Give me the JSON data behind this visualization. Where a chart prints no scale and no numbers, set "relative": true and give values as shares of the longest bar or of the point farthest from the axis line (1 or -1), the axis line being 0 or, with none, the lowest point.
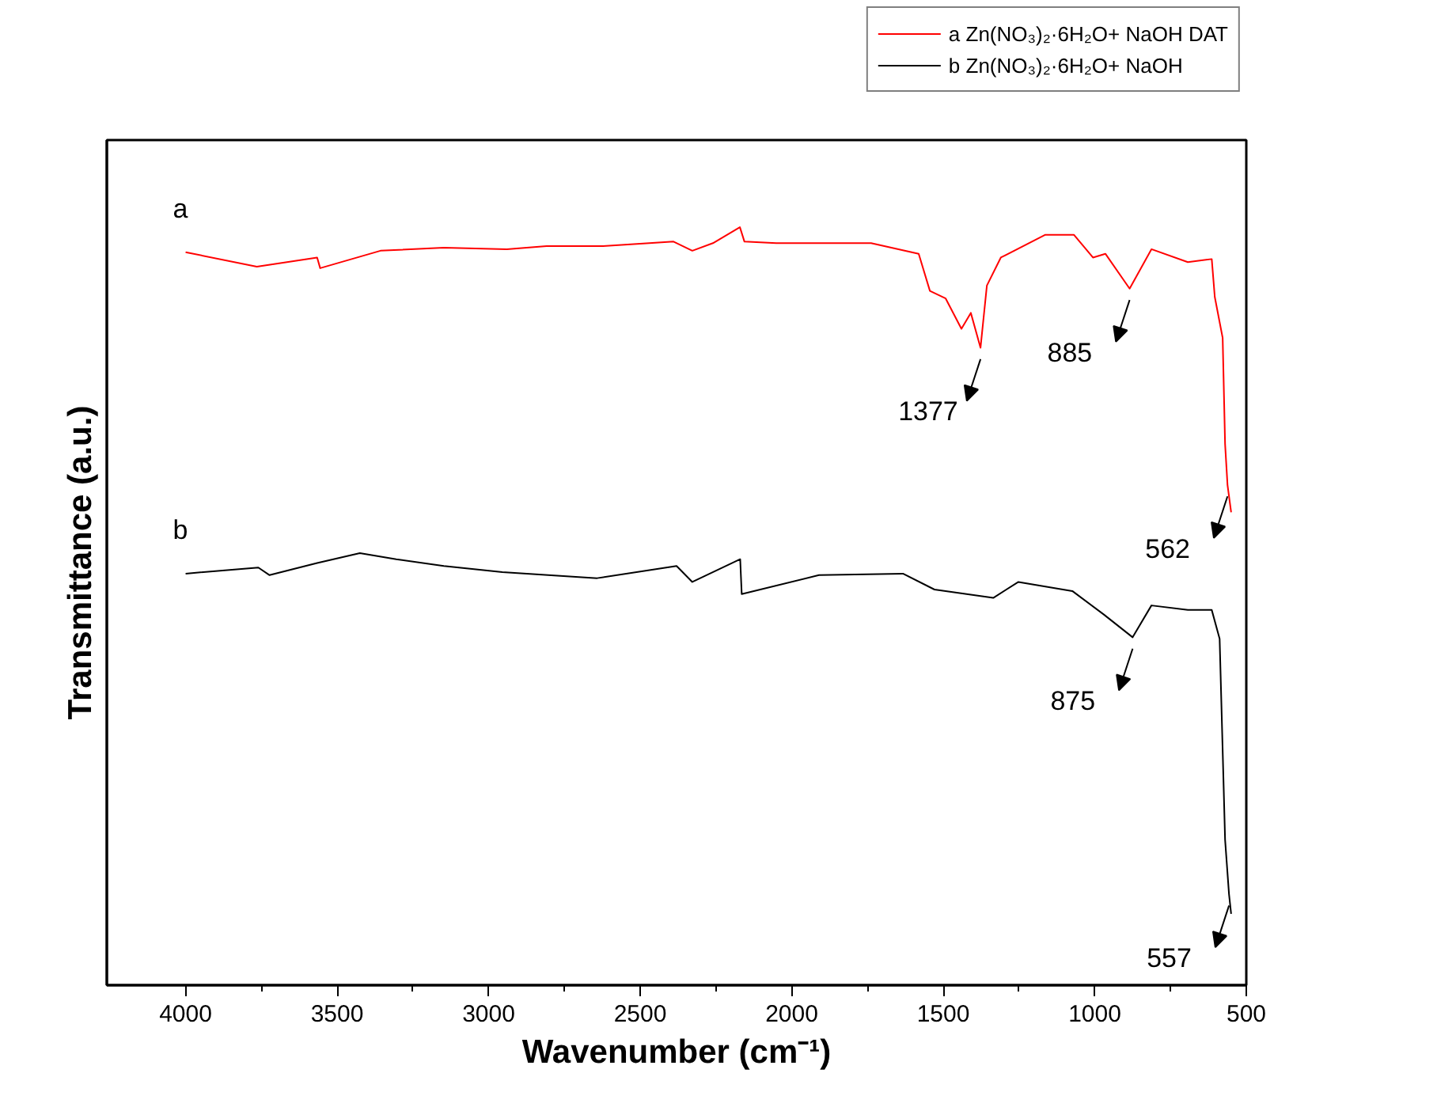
{
  "chart_data": {
    "type": "line",
    "relative": true,
    "xlabel": "Wavenumber (cm⁻¹)",
    "ylabel": "Transmittance (a.u.)",
    "xlim": [
      4260,
      500
    ],
    "xticks": [
      4000,
      {
        "value": 3750,
        "label": null
      },
      3500,
      {
        "value": 3250,
        "label": null
      },
      3000,
      {
        "value": 2750,
        "label": null
      },
      2500,
      {
        "value": 2250,
        "label": null
      },
      2000,
      {
        "value": 1750,
        "label": null
      },
      1500,
      {
        "value": 1250,
        "label": null
      },
      1000,
      {
        "value": 750,
        "label": null
      },
      500
    ],
    "grid": false,
    "legend": "top right",
    "line_style": "solid",
    "marker": "none",
    "series": [
      {
        "name": "a Zn(NO₃)₂·6H₂O+ NaOH DAT",
        "color": "#ff0000",
        "x": [
          4000,
          3765,
          3566,
          3556,
          3357,
          3148,
          2940,
          2809,
          2626,
          2470,
          2390,
          2328,
          2260,
          2171,
          2156,
          2051,
          2000,
          1738,
          1581,
          1544,
          1492,
          1440,
          1409,
          1377,
          1356,
          1310,
          1163,
          1069,
          1006,
          965,
          885,
          813,
          693,
          614,
          604,
          578,
          570,
          562,
          550
        ],
        "values": [
          0.967,
          0.948,
          0.96,
          0.946,
          0.969,
          0.973,
          0.971,
          0.975,
          0.975,
          0.979,
          0.981,
          0.969,
          0.979,
          1.0,
          0.981,
          0.979,
          0.979,
          0.979,
          0.965,
          0.916,
          0.906,
          0.866,
          0.887,
          0.841,
          0.923,
          0.96,
          0.99,
          0.99,
          0.96,
          0.965,
          0.919,
          0.971,
          0.954,
          0.958,
          0.908,
          0.854,
          0.714,
          0.66,
          0.624
        ]
      },
      {
        "name": "b Zn(NO₃)₂·6H₂O+ NaOH",
        "color": "#000000",
        "x": [
          4000,
          3760,
          3723,
          3566,
          3425,
          3305,
          3148,
          2955,
          2642,
          2380,
          2328,
          2170,
          2165,
          1910,
          1633,
          1529,
          1335,
          1252,
          1074,
          970,
          875,
          813,
          693,
          614,
          588,
          570,
          557,
          550
        ],
        "values": [
          0.543,
          0.551,
          0.541,
          0.557,
          0.57,
          0.562,
          0.553,
          0.545,
          0.537,
          0.553,
          0.532,
          0.562,
          0.516,
          0.541,
          0.543,
          0.522,
          0.511,
          0.532,
          0.52,
          0.489,
          0.459,
          0.501,
          0.495,
          0.495,
          0.457,
          0.192,
          0.12,
          0.094
        ]
      }
    ],
    "annotations": [
      "a",
      "b",
      {
        "text": "1377",
        "x": 1377,
        "y": 0.841
      },
      {
        "text": "885",
        "x": 885,
        "y": 0.919
      },
      {
        "text": "562",
        "x": 562,
        "y": 0.66
      },
      {
        "text": "875",
        "x": 875,
        "y": 0.459
      },
      {
        "text": "557",
        "x": 557,
        "y": 0.12
      }
    ]
  }
}
